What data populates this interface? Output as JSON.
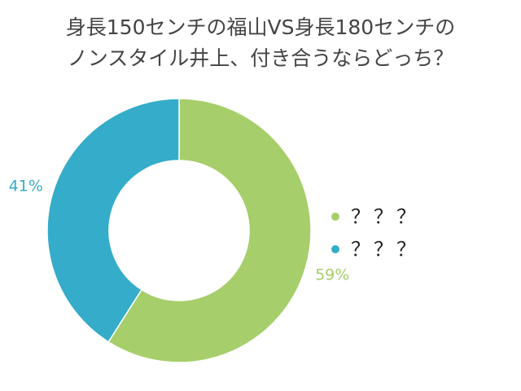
{
  "chart_data": {
    "type": "pie",
    "title_lines": [
      "身長150センチの福山VS身長180センチの",
      "ノンスタイル井上、付き合うならどっち？"
    ],
    "slices": [
      {
        "name": "？？？",
        "value": 59,
        "label": "59%",
        "color": "#a6ce6a"
      },
      {
        "name": "？？？",
        "value": 41,
        "label": "41%",
        "color": "#35acc9"
      }
    ],
    "legend_position": "right",
    "donut": true
  }
}
